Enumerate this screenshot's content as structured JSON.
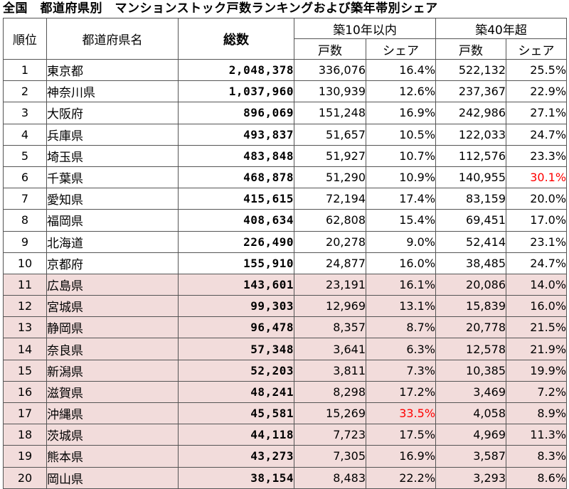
{
  "title": "全国　都道府県別　マンションストック戸数ランキングおよび築年帯別シェア",
  "headers": {
    "rank": "順位",
    "prefecture": "都道府県名",
    "total": "総数",
    "within10": "築10年以内",
    "over40": "築40年超",
    "units": "戸数",
    "share": "シェア"
  },
  "highlight_color": "#f2dcdb",
  "emphasis_color": "#ff0000",
  "rows": [
    {
      "rank": "1",
      "pref": "東京都",
      "total": "2,048,378",
      "u10": "336,076",
      "s10": "16.4%",
      "u40": "522,132",
      "s40": "25.5%"
    },
    {
      "rank": "2",
      "pref": "神奈川県",
      "total": "1,037,960",
      "u10": "130,939",
      "s10": "12.6%",
      "u40": "237,367",
      "s40": "22.9%"
    },
    {
      "rank": "3",
      "pref": "大阪府",
      "total": "896,069",
      "u10": "151,248",
      "s10": "16.9%",
      "u40": "242,986",
      "s40": "27.1%"
    },
    {
      "rank": "4",
      "pref": "兵庫県",
      "total": "493,837",
      "u10": "51,657",
      "s10": "10.5%",
      "u40": "122,033",
      "s40": "24.7%"
    },
    {
      "rank": "5",
      "pref": "埼玉県",
      "total": "483,848",
      "u10": "51,927",
      "s10": "10.7%",
      "u40": "112,576",
      "s40": "23.3%"
    },
    {
      "rank": "6",
      "pref": "千葉県",
      "total": "468,878",
      "u10": "51,290",
      "s10": "10.9%",
      "u40": "140,955",
      "s40": "30.1%",
      "red40": true
    },
    {
      "rank": "7",
      "pref": "愛知県",
      "total": "415,615",
      "u10": "72,194",
      "s10": "17.4%",
      "u40": "83,159",
      "s40": "20.0%"
    },
    {
      "rank": "8",
      "pref": "福岡県",
      "total": "408,634",
      "u10": "62,808",
      "s10": "15.4%",
      "u40": "69,451",
      "s40": "17.0%"
    },
    {
      "rank": "9",
      "pref": "北海道",
      "total": "226,490",
      "u10": "20,278",
      "s10": "9.0%",
      "u40": "52,414",
      "s40": "23.1%"
    },
    {
      "rank": "10",
      "pref": "京都府",
      "total": "155,910",
      "u10": "24,877",
      "s10": "16.0%",
      "u40": "38,485",
      "s40": "24.7%"
    },
    {
      "rank": "11",
      "pref": "広島県",
      "total": "143,601",
      "u10": "23,191",
      "s10": "16.1%",
      "u40": "20,086",
      "s40": "14.0%",
      "pink": true
    },
    {
      "rank": "12",
      "pref": "宮城県",
      "total": "99,303",
      "u10": "12,969",
      "s10": "13.1%",
      "u40": "15,839",
      "s40": "16.0%",
      "pink": true
    },
    {
      "rank": "13",
      "pref": "静岡県",
      "total": "96,478",
      "u10": "8,357",
      "s10": "8.7%",
      "u40": "20,778",
      "s40": "21.5%",
      "pink": true
    },
    {
      "rank": "14",
      "pref": "奈良県",
      "total": "57,348",
      "u10": "3,641",
      "s10": "6.3%",
      "u40": "12,578",
      "s40": "21.9%",
      "pink": true
    },
    {
      "rank": "15",
      "pref": "新潟県",
      "total": "52,203",
      "u10": "3,811",
      "s10": "7.3%",
      "u40": "10,385",
      "s40": "19.9%",
      "pink": true
    },
    {
      "rank": "16",
      "pref": "滋賀県",
      "total": "48,241",
      "u10": "8,298",
      "s10": "17.2%",
      "u40": "3,469",
      "s40": "7.2%",
      "pink": true
    },
    {
      "rank": "17",
      "pref": "沖縄県",
      "total": "45,581",
      "u10": "15,269",
      "s10": "33.5%",
      "u40": "4,058",
      "s40": "8.9%",
      "pink": true,
      "red10": true
    },
    {
      "rank": "18",
      "pref": "茨城県",
      "total": "44,118",
      "u10": "7,723",
      "s10": "17.5%",
      "u40": "4,969",
      "s40": "11.3%",
      "pink": true
    },
    {
      "rank": "19",
      "pref": "熊本県",
      "total": "43,273",
      "u10": "7,305",
      "s10": "16.9%",
      "u40": "3,587",
      "s40": "8.3%",
      "pink": true
    },
    {
      "rank": "20",
      "pref": "岡山県",
      "total": "38,154",
      "u10": "8,483",
      "s10": "22.2%",
      "u40": "3,293",
      "s40": "8.6%",
      "pink": true
    }
  ]
}
